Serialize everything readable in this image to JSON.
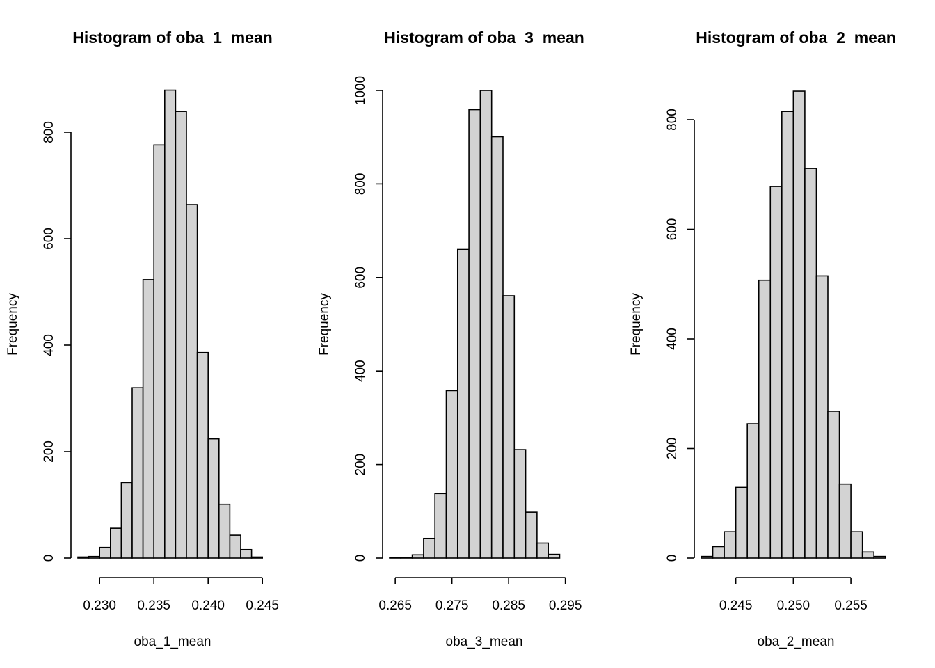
{
  "chart_data": [
    {
      "type": "histogram",
      "title": "Histogram of oba_1_mean",
      "xlabel": "oba_1_mean",
      "ylabel": "Frequency",
      "bin_width": 0.001,
      "bin_edges": [
        0.228,
        0.229,
        0.23,
        0.231,
        0.232,
        0.233,
        0.234,
        0.235,
        0.236,
        0.237,
        0.238,
        0.239,
        0.24,
        0.241,
        0.242,
        0.243,
        0.244,
        0.245
      ],
      "values": [
        2,
        3,
        20,
        56,
        142,
        320,
        523,
        776,
        879,
        839,
        664,
        386,
        224,
        101,
        43,
        16,
        2
      ],
      "xlim": [
        0.228,
        0.2455
      ],
      "ylim": [
        0,
        880
      ],
      "x_ticks": [
        "0.230",
        "0.235",
        "0.240",
        "0.245"
      ],
      "y_ticks": [
        "0",
        "200",
        "400",
        "600",
        "800"
      ],
      "grid": false,
      "legend": false,
      "bar_color": "#d3d3d3"
    },
    {
      "type": "histogram",
      "title": "Histogram of oba_3_mean",
      "xlabel": "oba_3_mean",
      "ylabel": "Frequency",
      "bin_width": 0.002,
      "bin_edges": [
        0.264,
        0.266,
        0.268,
        0.27,
        0.272,
        0.274,
        0.276,
        0.278,
        0.28,
        0.282,
        0.284,
        0.286,
        0.288,
        0.29,
        0.292,
        0.294,
        0.296
      ],
      "values": [
        1,
        1,
        7,
        42,
        138,
        358,
        660,
        959,
        1000,
        901,
        561,
        232,
        98,
        32,
        8,
        0
      ],
      "xlim": [
        0.264,
        0.2975
      ],
      "ylim": [
        0,
        1000
      ],
      "x_ticks": [
        "0.265",
        "0.275",
        "0.285",
        "0.295"
      ],
      "y_ticks": [
        "0",
        "200",
        "400",
        "600",
        "800",
        "1000"
      ],
      "grid": false,
      "legend": false,
      "bar_color": "#d3d3d3"
    },
    {
      "type": "histogram",
      "title": "Histogram of oba_2_mean",
      "xlabel": "oba_2_mean",
      "ylabel": "Frequency",
      "bin_width": 0.001,
      "bin_edges": [
        0.242,
        0.243,
        0.244,
        0.245,
        0.246,
        0.247,
        0.248,
        0.249,
        0.25,
        0.251,
        0.252,
        0.253,
        0.254,
        0.255,
        0.256,
        0.257,
        0.258
      ],
      "values": [
        3,
        21,
        48,
        129,
        245,
        507,
        678,
        815,
        852,
        711,
        515,
        268,
        135,
        48,
        11,
        3
      ],
      "xlim": [
        0.242,
        0.2585
      ],
      "ylim": [
        0,
        852
      ],
      "x_ticks": [
        "0.245",
        "0.250",
        "0.255"
      ],
      "y_ticks": [
        "0",
        "200",
        "400",
        "600",
        "800"
      ],
      "grid": false,
      "legend": false,
      "bar_color": "#d3d3d3"
    }
  ]
}
